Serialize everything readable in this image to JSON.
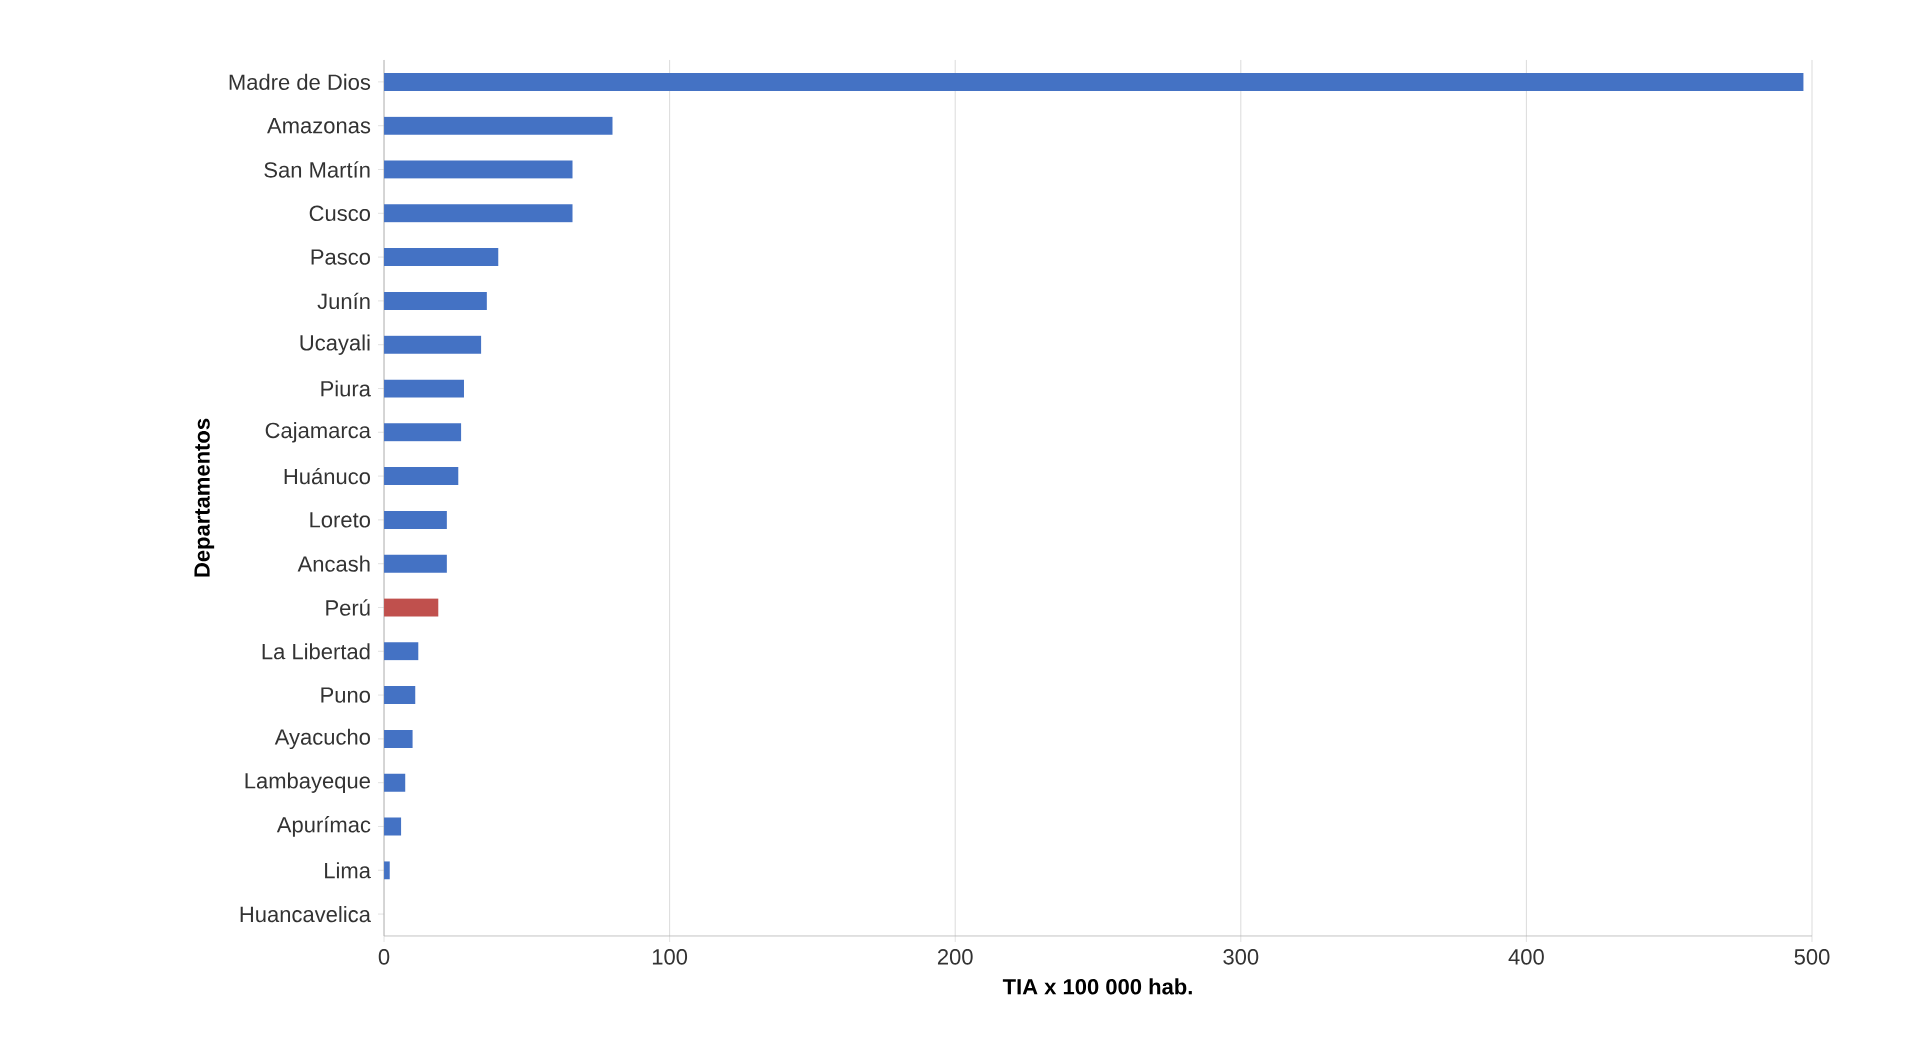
{
  "chart_data": {
    "type": "bar",
    "orientation": "horizontal",
    "xlabel": "TIA x 100 000 hab.",
    "ylabel": "Departamentos",
    "categories": [
      "Madre de Dios",
      "Amazonas",
      "San Martín",
      "Cusco",
      "Pasco",
      "Junín",
      "Ucayali",
      "Piura",
      "Cajamarca",
      "Huánuco",
      "Loreto",
      "Ancash",
      "Perú",
      "La Libertad",
      "Puno",
      "Ayacucho",
      "Lambayeque",
      "Apurímac",
      "Lima",
      "Huancavelica"
    ],
    "values": [
      497,
      80,
      66,
      66,
      40,
      36,
      34,
      28,
      27,
      26,
      22,
      22,
      19,
      12,
      11,
      10,
      7.5,
      6,
      2,
      0
    ],
    "colors": [
      "#4472c4",
      "#4472c4",
      "#4472c4",
      "#4472c4",
      "#4472c4",
      "#4472c4",
      "#4472c4",
      "#4472c4",
      "#4472c4",
      "#4472c4",
      "#4472c4",
      "#4472c4",
      "#c0504d",
      "#4472c4",
      "#4472c4",
      "#4472c4",
      "#4472c4",
      "#4472c4",
      "#4472c4",
      "#4472c4"
    ],
    "xlim": [
      0,
      500
    ],
    "xticks": [
      0,
      100,
      200,
      300,
      400,
      500
    ],
    "grid": "x"
  }
}
